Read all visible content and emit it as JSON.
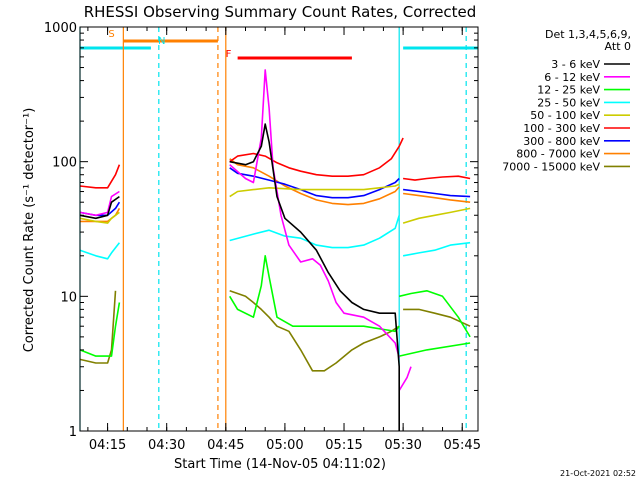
{
  "chart_data": {
    "type": "line",
    "title": "RHESSI Observing Summary Count Rates, Corrected",
    "xlabel": "Start Time (14-Nov-05 04:11:02)",
    "ylabel": "Corrected Count Rate (s⁻¹ detector⁻¹)",
    "yscale": "log",
    "ylim": [
      1,
      1000
    ],
    "xlim_minutes_utc": [
      "04:08",
      "05:49"
    ],
    "x_ticks": [
      "04:15",
      "04:30",
      "04:45",
      "05:00",
      "05:15",
      "05:30",
      "05:45"
    ],
    "y_ticks": [
      "1",
      "10",
      "100",
      "1000"
    ],
    "legend_header": [
      "Det 1,3,4,5,6,9,",
      "Att 0"
    ],
    "legend_position": "top-right",
    "footer": "21-Oct-2021 02:52",
    "flags": [
      {
        "label": "S",
        "color": "#ff8000",
        "start": "04:19",
        "end": "04:43"
      },
      {
        "label": "N",
        "color": "#00e5ee",
        "start": "04:08",
        "end": "04:26"
      },
      {
        "label": "N",
        "color": "#00e5ee",
        "start": "05:30",
        "end": "05:49"
      },
      {
        "label": "F",
        "color": "#ff0000",
        "start": "04:48",
        "end": "05:17"
      }
    ],
    "vlines": [
      {
        "time": "04:08",
        "color": "#00e5ee",
        "style": "solid"
      },
      {
        "time": "04:19",
        "color": "#ff8000",
        "style": "solid"
      },
      {
        "time": "04:28",
        "color": "#00e5ee",
        "style": "dashed"
      },
      {
        "time": "04:43",
        "color": "#ff8000",
        "style": "dashed"
      },
      {
        "time": "04:45",
        "color": "#ff8000",
        "style": "solid"
      },
      {
        "time": "05:29",
        "color": "#00e5ee",
        "style": "solid"
      },
      {
        "time": "05:46",
        "color": "#00e5ee",
        "style": "dashed"
      }
    ],
    "series": [
      {
        "name": "3 - 6 keV",
        "color": "#000000",
        "segments": [
          [
            [
              "04:08",
              40
            ],
            [
              "04:12",
              38
            ],
            [
              "04:15",
              40
            ],
            [
              "04:16",
              50
            ],
            [
              "04:18",
              55
            ]
          ],
          [
            [
              "04:46",
              100
            ],
            [
              "04:50",
              95
            ],
            [
              "04:52",
              100
            ],
            [
              "04:54",
              130
            ],
            [
              "04:55",
              190
            ],
            [
              "04:56",
              140
            ],
            [
              "04:58",
              55
            ],
            [
              "05:00",
              38
            ],
            [
              "05:04",
              30
            ],
            [
              "05:08",
              22
            ],
            [
              "05:11",
              15
            ],
            [
              "05:14",
              11
            ],
            [
              "05:17",
              9
            ],
            [
              "05:20",
              8
            ],
            [
              "05:24",
              7.5
            ],
            [
              "05:28",
              7.5
            ],
            [
              "05:29",
              3
            ],
            [
              "05:29",
              1
            ]
          ]
        ]
      },
      {
        "name": "6 - 12 keV",
        "color": "#ff00ff",
        "segments": [
          [
            [
              "04:08",
              42
            ],
            [
              "04:12",
              40
            ],
            [
              "04:15",
              42
            ],
            [
              "04:16",
              55
            ],
            [
              "04:18",
              60
            ]
          ],
          [
            [
              "04:46",
              95
            ],
            [
              "04:50",
              75
            ],
            [
              "04:52",
              70
            ],
            [
              "04:54",
              150
            ],
            [
              "04:55",
              480
            ],
            [
              "04:56",
              250
            ],
            [
              "04:57",
              90
            ],
            [
              "04:59",
              40
            ],
            [
              "05:01",
              24
            ],
            [
              "05:04",
              18
            ],
            [
              "05:07",
              19
            ],
            [
              "05:09",
              17
            ],
            [
              "05:11",
              13
            ],
            [
              "05:13",
              9
            ],
            [
              "05:15",
              7.5
            ],
            [
              "05:20",
              7
            ],
            [
              "05:24",
              6
            ],
            [
              "05:28",
              4.5
            ],
            [
              "05:29",
              3.5
            ]
          ],
          [
            [
              "05:29",
              2
            ],
            [
              "05:31",
              2.5
            ],
            [
              "05:32",
              3
            ]
          ]
        ]
      },
      {
        "name": "12 - 25 keV",
        "color": "#00ff00",
        "segments": [
          [
            [
              "04:08",
              4
            ],
            [
              "04:12",
              3.6
            ],
            [
              "04:16",
              3.6
            ],
            [
              "04:17",
              6
            ],
            [
              "04:18",
              9
            ]
          ],
          [
            [
              "04:46",
              10
            ],
            [
              "04:48",
              8
            ],
            [
              "04:52",
              7
            ],
            [
              "04:54",
              12
            ],
            [
              "04:55",
              20
            ],
            [
              "04:56",
              14
            ],
            [
              "04:58",
              7
            ],
            [
              "05:02",
              6
            ],
            [
              "05:10",
              6
            ],
            [
              "05:20",
              6
            ],
            [
              "05:28",
              5.5
            ],
            [
              "05:29",
              6
            ]
          ],
          [
            [
              "05:29",
              10
            ],
            [
              "05:32",
              10.5
            ],
            [
              "05:36",
              11
            ],
            [
              "05:40",
              10
            ],
            [
              "05:44",
              7
            ],
            [
              "05:47",
              5
            ]
          ],
          [
            [
              "05:29",
              3.6
            ],
            [
              "05:36",
              4
            ],
            [
              "05:47",
              4.5
            ]
          ]
        ]
      },
      {
        "name": "25 - 50 keV",
        "color": "#00ffff",
        "segments": [
          [
            [
              "04:08",
              22
            ],
            [
              "04:12",
              20
            ],
            [
              "04:15",
              19
            ],
            [
              "04:16",
              21
            ],
            [
              "04:18",
              25
            ]
          ],
          [
            [
              "04:46",
              26
            ],
            [
              "04:52",
              29
            ],
            [
              "04:56",
              31
            ],
            [
              "05:00",
              28
            ],
            [
              "05:04",
              27
            ],
            [
              "05:08",
              24
            ],
            [
              "05:12",
              23
            ],
            [
              "05:16",
              23
            ],
            [
              "05:20",
              24
            ],
            [
              "05:24",
              27
            ],
            [
              "05:28",
              32
            ],
            [
              "05:29",
              40
            ]
          ],
          [
            [
              "05:30",
              20
            ],
            [
              "05:34",
              21
            ],
            [
              "05:38",
              22
            ],
            [
              "05:42",
              24
            ],
            [
              "05:47",
              25
            ]
          ]
        ]
      },
      {
        "name": "50 - 100 keV",
        "color": "#cccc00",
        "segments": [
          [
            [
              "04:08",
              38
            ],
            [
              "04:12",
              36
            ],
            [
              "04:15",
              35
            ],
            [
              "04:16",
              38
            ],
            [
              "04:18",
              42
            ]
          ],
          [
            [
              "04:46",
              55
            ],
            [
              "04:48",
              60
            ],
            [
              "04:52",
              62
            ],
            [
              "04:56",
              64
            ],
            [
              "05:00",
              63
            ],
            [
              "05:04",
              62
            ],
            [
              "05:08",
              62
            ],
            [
              "05:12",
              62
            ],
            [
              "05:16",
              62
            ],
            [
              "05:20",
              62
            ],
            [
              "05:24",
              64
            ],
            [
              "05:28",
              66
            ],
            [
              "05:29",
              68
            ]
          ],
          [
            [
              "05:30",
              35
            ],
            [
              "05:34",
              38
            ],
            [
              "05:38",
              40
            ],
            [
              "05:42",
              42
            ],
            [
              "05:47",
              45
            ]
          ]
        ]
      },
      {
        "name": "100 - 300 keV",
        "color": "#ff0000",
        "segments": [
          [
            [
              "04:08",
              66
            ],
            [
              "04:12",
              64
            ],
            [
              "04:15",
              64
            ],
            [
              "04:17",
              80
            ],
            [
              "04:18",
              95
            ]
          ],
          [
            [
              "04:46",
              100
            ],
            [
              "04:48",
              110
            ],
            [
              "04:52",
              115
            ],
            [
              "04:55",
              110
            ],
            [
              "04:58",
              98
            ],
            [
              "05:01",
              90
            ],
            [
              "05:04",
              85
            ],
            [
              "05:08",
              80
            ],
            [
              "05:12",
              78
            ],
            [
              "05:16",
              78
            ],
            [
              "05:20",
              80
            ],
            [
              "05:24",
              90
            ],
            [
              "05:27",
              105
            ],
            [
              "05:29",
              130
            ],
            [
              "05:30",
              150
            ]
          ],
          [
            [
              "05:30",
              75
            ],
            [
              "05:33",
              73
            ],
            [
              "05:36",
              75
            ],
            [
              "05:40",
              77
            ],
            [
              "05:44",
              78
            ],
            [
              "05:47",
              75
            ]
          ]
        ]
      },
      {
        "name": "300 - 800 keV",
        "color": "#0000ff",
        "segments": [
          [
            [
              "04:08",
              42
            ],
            [
              "04:12",
              40
            ],
            [
              "04:15",
              40
            ],
            [
              "04:17",
              45
            ],
            [
              "04:18",
              50
            ]
          ],
          [
            [
              "04:46",
              90
            ],
            [
              "04:48",
              82
            ],
            [
              "04:52",
              78
            ],
            [
              "04:56",
              73
            ],
            [
              "05:00",
              68
            ],
            [
              "05:04",
              62
            ],
            [
              "05:08",
              56
            ],
            [
              "05:12",
              54
            ],
            [
              "05:16",
              54
            ],
            [
              "05:20",
              56
            ],
            [
              "05:24",
              62
            ],
            [
              "05:28",
              70
            ],
            [
              "05:29",
              75
            ]
          ],
          [
            [
              "05:30",
              62
            ],
            [
              "05:34",
              60
            ],
            [
              "05:38",
              58
            ],
            [
              "05:42",
              56
            ],
            [
              "05:47",
              55
            ]
          ]
        ]
      },
      {
        "name": "800 - 7000 keV",
        "color": "#ff8000",
        "segments": [
          [
            [
              "04:08",
              36
            ],
            [
              "04:12",
              36
            ],
            [
              "04:15",
              36
            ],
            [
              "04:17",
              40
            ],
            [
              "04:18",
              45
            ]
          ],
          [
            [
              "04:46",
              105
            ],
            [
              "04:48",
              95
            ],
            [
              "04:52",
              90
            ],
            [
              "04:56",
              78
            ],
            [
              "05:00",
              66
            ],
            [
              "05:04",
              58
            ],
            [
              "05:08",
              52
            ],
            [
              "05:12",
              49
            ],
            [
              "05:16",
              48
            ],
            [
              "05:20",
              49
            ],
            [
              "05:24",
              53
            ],
            [
              "05:28",
              60
            ],
            [
              "05:29",
              65
            ]
          ],
          [
            [
              "05:30",
              58
            ],
            [
              "05:34",
              56
            ],
            [
              "05:38",
              54
            ],
            [
              "05:42",
              52
            ],
            [
              "05:47",
              50
            ]
          ]
        ]
      },
      {
        "name": "7000 - 15000 keV",
        "color": "#808000",
        "segments": [
          [
            [
              "04:08",
              3.4
            ],
            [
              "04:12",
              3.2
            ],
            [
              "04:15",
              3.2
            ],
            [
              "04:16",
              4
            ],
            [
              "04:17",
              11
            ]
          ],
          [
            [
              "04:46",
              11
            ],
            [
              "04:50",
              10
            ],
            [
              "04:52",
              9
            ],
            [
              "04:54",
              8
            ],
            [
              "04:56",
              7
            ],
            [
              "04:58",
              6
            ],
            [
              "05:01",
              5.5
            ],
            [
              "05:04",
              4
            ],
            [
              "05:07",
              2.8
            ],
            [
              "05:10",
              2.8
            ],
            [
              "05:13",
              3.2
            ],
            [
              "05:17",
              4
            ],
            [
              "05:20",
              4.5
            ],
            [
              "05:24",
              5
            ],
            [
              "05:27",
              5.5
            ],
            [
              "05:29",
              6
            ]
          ],
          [
            [
              "05:30",
              8
            ],
            [
              "05:34",
              8
            ],
            [
              "05:38",
              7.5
            ],
            [
              "05:42",
              7
            ],
            [
              "05:47",
              6
            ]
          ]
        ]
      }
    ]
  }
}
